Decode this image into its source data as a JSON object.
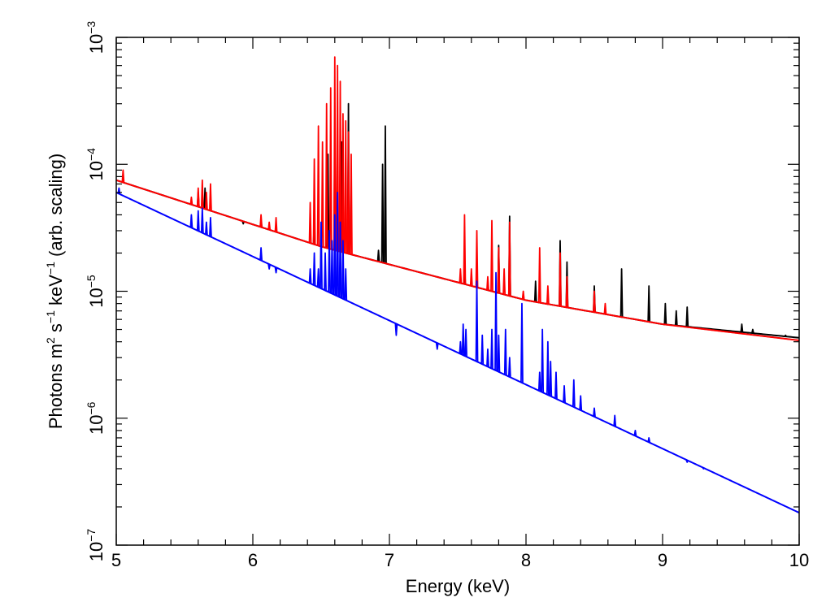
{
  "chart_data": {
    "type": "line",
    "xlabel": "Energy (keV)",
    "ylabel_parts": [
      "Photons m",
      "2",
      " s",
      "−1",
      " keV",
      "−1",
      " (arb. scaling)"
    ],
    "xlim": [
      5,
      10
    ],
    "ylim": [
      1e-07,
      0.001
    ],
    "y_scale": "log",
    "x_ticks": [
      5,
      6,
      7,
      8,
      9,
      10
    ],
    "x_tick_labels": [
      "5",
      "6",
      "7",
      "8",
      "9",
      "10"
    ],
    "y_ticks": [
      1e-07,
      1e-06,
      1e-05,
      0.0001,
      0.001
    ],
    "y_tick_labels": [
      {
        "base": "10",
        "exp": "−7"
      },
      {
        "base": "10",
        "exp": "−6"
      },
      {
        "base": "10",
        "exp": "−5"
      },
      {
        "base": "10",
        "exp": "−4"
      },
      {
        "base": "10",
        "exp": "−3"
      }
    ],
    "series": [
      {
        "color": "#000000",
        "continuum": {
          "x": [
            5,
            6.5,
            8,
            9,
            10
          ],
          "y": [
            7.5e-05,
            2.25e-05,
            8.5e-06,
            5.5e-06,
            4.3e-06
          ]
        },
        "lines": [
          {
            "x": 5.6,
            "y": 6e-05
          },
          {
            "x": 5.65,
            "y": 6.5e-05
          },
          {
            "x": 5.93,
            "y": 3.4e-05
          },
          {
            "x": 6.06,
            "y": 3.6e-05
          },
          {
            "x": 6.45,
            "y": 4e-05
          },
          {
            "x": 6.55,
            "y": 0.00012
          },
          {
            "x": 6.6,
            "y": 0.0002
          },
          {
            "x": 6.65,
            "y": 0.00015
          },
          {
            "x": 6.7,
            "y": 0.0003
          },
          {
            "x": 6.92,
            "y": 2.1e-05
          },
          {
            "x": 6.95,
            "y": 0.0001
          },
          {
            "x": 6.97,
            "y": 0.0002
          },
          {
            "x": 7.55,
            "y": 1.6e-05
          },
          {
            "x": 7.8,
            "y": 2.3e-05
          },
          {
            "x": 7.88,
            "y": 3.9e-05
          },
          {
            "x": 8.07,
            "y": 1.2e-05
          },
          {
            "x": 8.25,
            "y": 2.5e-05
          },
          {
            "x": 8.3,
            "y": 1.7e-05
          },
          {
            "x": 8.5,
            "y": 1.1e-05
          },
          {
            "x": 8.7,
            "y": 1.5e-05
          },
          {
            "x": 8.9,
            "y": 1.1e-05
          },
          {
            "x": 9.02,
            "y": 8e-06
          },
          {
            "x": 9.1,
            "y": 7e-06
          },
          {
            "x": 9.18,
            "y": 7.5e-06
          },
          {
            "x": 9.58,
            "y": 5.5e-06
          },
          {
            "x": 9.66,
            "y": 5e-06
          },
          {
            "x": 9.9,
            "y": 4.5e-06
          }
        ]
      },
      {
        "color": "#ff0000",
        "continuum": {
          "x": [
            5,
            6.5,
            8,
            9,
            10
          ],
          "y": [
            7.5e-05,
            2.25e-05,
            8.5e-06,
            5.5e-06,
            4.1e-06
          ]
        },
        "lines": [
          {
            "x": 5.05,
            "y": 9e-05
          },
          {
            "x": 5.55,
            "y": 5.5e-05
          },
          {
            "x": 5.6,
            "y": 6.5e-05
          },
          {
            "x": 5.63,
            "y": 7.5e-05
          },
          {
            "x": 5.66,
            "y": 6e-05
          },
          {
            "x": 5.69,
            "y": 7e-05
          },
          {
            "x": 6.06,
            "y": 4e-05
          },
          {
            "x": 6.12,
            "y": 3.5e-05
          },
          {
            "x": 6.17,
            "y": 3.8e-05
          },
          {
            "x": 6.42,
            "y": 5e-05
          },
          {
            "x": 6.45,
            "y": 0.00011
          },
          {
            "x": 6.48,
            "y": 0.0002
          },
          {
            "x": 6.51,
            "y": 0.00015
          },
          {
            "x": 6.54,
            "y": 0.0003
          },
          {
            "x": 6.57,
            "y": 0.0004
          },
          {
            "x": 6.6,
            "y": 0.0007
          },
          {
            "x": 6.62,
            "y": 0.0006
          },
          {
            "x": 6.64,
            "y": 0.00045
          },
          {
            "x": 6.66,
            "y": 0.00025
          },
          {
            "x": 6.68,
            "y": 0.00022
          },
          {
            "x": 6.7,
            "y": 0.00018
          },
          {
            "x": 6.72,
            "y": 0.00012
          },
          {
            "x": 7.52,
            "y": 1.5e-05
          },
          {
            "x": 7.55,
            "y": 4e-05
          },
          {
            "x": 7.6,
            "y": 1.5e-05
          },
          {
            "x": 7.64,
            "y": 3e-05
          },
          {
            "x": 7.72,
            "y": 1.3e-05
          },
          {
            "x": 7.75,
            "y": 3.6e-05
          },
          {
            "x": 7.8,
            "y": 2.2e-05
          },
          {
            "x": 7.84,
            "y": 1.5e-05
          },
          {
            "x": 7.88,
            "y": 3.5e-05
          },
          {
            "x": 7.98,
            "y": 1e-05
          },
          {
            "x": 8.1,
            "y": 2.2e-05
          },
          {
            "x": 8.16,
            "y": 1.1e-05
          },
          {
            "x": 8.25,
            "y": 2e-05
          },
          {
            "x": 8.3,
            "y": 1.3e-05
          },
          {
            "x": 8.5,
            "y": 1e-05
          },
          {
            "x": 8.58,
            "y": 8e-06
          }
        ]
      },
      {
        "color": "#0000ff",
        "continuum": {
          "x": [
            5,
            10
          ],
          "y": [
            6e-05,
            1.8e-07
          ]
        },
        "lines": [
          {
            "x": 5.02,
            "y": 6.5e-05
          },
          {
            "x": 5.55,
            "y": 4e-05
          },
          {
            "x": 5.6,
            "y": 4.3e-05
          },
          {
            "x": 5.63,
            "y": 4.5e-05
          },
          {
            "x": 5.66,
            "y": 3.5e-05
          },
          {
            "x": 5.69,
            "y": 3.8e-05
          },
          {
            "x": 6.06,
            "y": 2.2e-05
          },
          {
            "x": 6.12,
            "y": 1.5e-05
          },
          {
            "x": 6.17,
            "y": 1.4e-05
          },
          {
            "x": 6.42,
            "y": 1.5e-05
          },
          {
            "x": 6.45,
            "y": 2e-05
          },
          {
            "x": 6.48,
            "y": 1.5e-05
          },
          {
            "x": 6.5,
            "y": 3.5e-05
          },
          {
            "x": 6.53,
            "y": 2e-05
          },
          {
            "x": 6.56,
            "y": 3e-05
          },
          {
            "x": 6.58,
            "y": 2.5e-05
          },
          {
            "x": 6.6,
            "y": 4e-05
          },
          {
            "x": 6.62,
            "y": 6e-05
          },
          {
            "x": 6.64,
            "y": 3.5e-05
          },
          {
            "x": 6.66,
            "y": 2.5e-05
          },
          {
            "x": 6.68,
            "y": 1.5e-05
          },
          {
            "x": 7.05,
            "y": 4.5e-06
          },
          {
            "x": 7.35,
            "y": 3.5e-06
          },
          {
            "x": 7.52,
            "y": 4e-06
          },
          {
            "x": 7.54,
            "y": 5.5e-06
          },
          {
            "x": 7.56,
            "y": 5e-06
          },
          {
            "x": 7.64,
            "y": 1.2e-05
          },
          {
            "x": 7.68,
            "y": 4.5e-06
          },
          {
            "x": 7.72,
            "y": 3.5e-06
          },
          {
            "x": 7.75,
            "y": 5e-06
          },
          {
            "x": 7.78,
            "y": 1.4e-05
          },
          {
            "x": 7.8,
            "y": 4.5e-06
          },
          {
            "x": 7.85,
            "y": 5e-06
          },
          {
            "x": 7.88,
            "y": 3e-06
          },
          {
            "x": 7.97,
            "y": 8e-06
          },
          {
            "x": 8.1,
            "y": 2.3e-06
          },
          {
            "x": 8.12,
            "y": 5e-06
          },
          {
            "x": 8.16,
            "y": 4e-06
          },
          {
            "x": 8.18,
            "y": 2.8e-06
          },
          {
            "x": 8.22,
            "y": 2.3e-06
          },
          {
            "x": 8.28,
            "y": 1.8e-06
          },
          {
            "x": 8.35,
            "y": 2e-06
          },
          {
            "x": 8.4,
            "y": 1.5e-06
          },
          {
            "x": 8.5,
            "y": 1.2e-06
          },
          {
            "x": 8.65,
            "y": 1.05e-06
          },
          {
            "x": 8.8,
            "y": 8e-07
          },
          {
            "x": 8.9,
            "y": 7e-07
          },
          {
            "x": 9.18,
            "y": 4.5e-07
          },
          {
            "x": 9.3,
            "y": 4e-07
          }
        ]
      }
    ]
  }
}
